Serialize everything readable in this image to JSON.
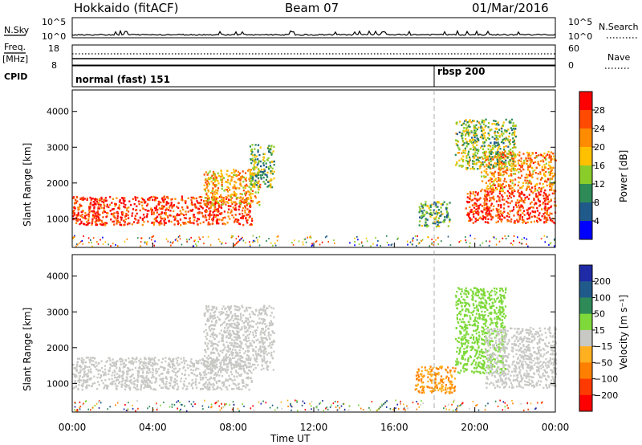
{
  "header": {
    "station": "Hokkaido (fitACF)",
    "beam": "Beam 07",
    "date": "01/Mar/2016"
  },
  "strips": {
    "nsky_label": "N.Sky",
    "nsky_ticks": [
      "10^5",
      "10^0"
    ],
    "nsearch_label": "N.Search",
    "freq_label": "Freq.",
    "freq_unit": "[MHz]",
    "freq_ticks": [
      "18",
      "8"
    ],
    "nave_ticks": [
      "60",
      "0"
    ],
    "nave_label": "Nave",
    "cpid_label": "CPID",
    "cpid_segments": [
      {
        "name": "normal (fast) 151",
        "start_hour": 0
      },
      {
        "name": "rbsp 200",
        "start_hour": 18
      }
    ]
  },
  "chart_data": [
    {
      "type": "heatmap",
      "panel": "power",
      "ylabel": "Slant Range [km]",
      "yticks": [
        1000,
        2000,
        3000,
        4000
      ],
      "ylim": [
        200,
        4600
      ],
      "xlim_hours": [
        0,
        24
      ],
      "colorbar": {
        "label": "Power [dB]",
        "ticks": [
          "28",
          "24",
          "20",
          "16",
          "12",
          "8",
          "4"
        ],
        "colors": [
          "#ff0000",
          "#ff4a00",
          "#ff8c00",
          "#ffc000",
          "#8acd2a",
          "#2e8b57",
          "#205a8a",
          "#0000ff"
        ]
      },
      "regions": [
        {
          "t0": 0.0,
          "t1": 8.9,
          "r0": 850,
          "r1": 1650,
          "value": 28
        },
        {
          "t0": 6.5,
          "t1": 9.3,
          "r0": 1400,
          "r1": 2400,
          "value": 20
        },
        {
          "t0": 8.8,
          "t1": 10.0,
          "r0": 1900,
          "r1": 3100,
          "value": 12
        },
        {
          "t0": 17.2,
          "t1": 18.8,
          "r0": 800,
          "r1": 1500,
          "value": 12
        },
        {
          "t0": 19.5,
          "t1": 24.0,
          "r0": 900,
          "r1": 1800,
          "value": 28
        },
        {
          "t0": 20.2,
          "t1": 24.0,
          "r0": 1800,
          "r1": 2900,
          "value": 22
        },
        {
          "t0": 19.0,
          "t1": 22.0,
          "r0": 2400,
          "r1": 3800,
          "value": 14
        }
      ]
    },
    {
      "type": "heatmap",
      "panel": "velocity",
      "ylabel": "Slant Range [km]",
      "yticks": [
        1000,
        2000,
        3000,
        4000
      ],
      "ylim": [
        200,
        4600
      ],
      "xlim_hours": [
        0,
        24
      ],
      "xticks": [
        "00:00",
        "04:00",
        "08:00",
        "12:00",
        "16:00",
        "20:00",
        "00:00"
      ],
      "xlabel": "Time UT",
      "colorbar": {
        "label": "Velocity [m s⁻¹]",
        "ticks": [
          "200",
          "100",
          "50",
          "15",
          "−15",
          "−50",
          "−100",
          "−200"
        ],
        "colors": [
          "#1e2aa6",
          "#205a8a",
          "#2e8b57",
          "#7fd93a",
          "#c8c8c4",
          "#ffb020",
          "#ff7f00",
          "#ff3a00",
          "#ff0000"
        ]
      },
      "regions": [
        {
          "t0": 0.0,
          "t1": 8.9,
          "r0": 850,
          "r1": 1750,
          "value": 0
        },
        {
          "t0": 6.5,
          "t1": 10.0,
          "r0": 1400,
          "r1": 3200,
          "value": 0
        },
        {
          "t0": 17.0,
          "t1": 19.0,
          "r0": 750,
          "r1": 1500,
          "value": -50
        },
        {
          "t0": 19.0,
          "t1": 21.5,
          "r0": 1300,
          "r1": 3700,
          "value": 30
        },
        {
          "t0": 20.5,
          "t1": 24.0,
          "r0": 900,
          "r1": 2600,
          "value": 0
        }
      ]
    }
  ]
}
